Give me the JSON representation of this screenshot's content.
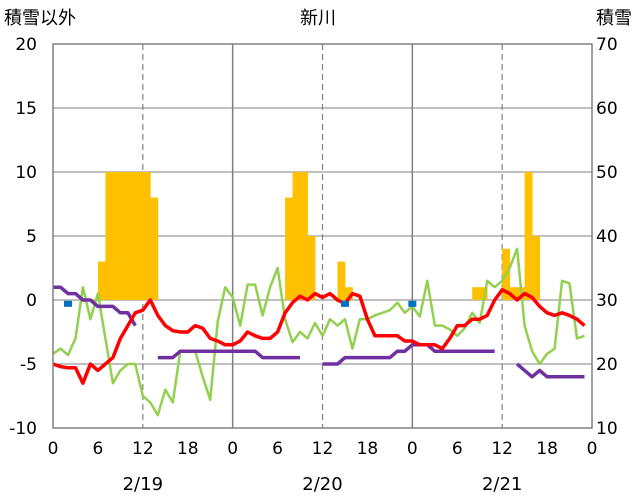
{
  "chart_data": {
    "type": "line",
    "title": "新川",
    "ylabel_left": "積雪以外",
    "ylabel_right": "積雪",
    "ylim_left": [
      -10,
      20
    ],
    "yticks_left": [
      20,
      15,
      10,
      5,
      0,
      -5,
      -10
    ],
    "ylim_right": [
      10,
      70
    ],
    "yticks_right": [
      70,
      60,
      50,
      40,
      30,
      20,
      10
    ],
    "xlim": [
      0,
      72
    ],
    "xticks": [
      0,
      6,
      12,
      18,
      24,
      30,
      36,
      42,
      48,
      54,
      60,
      66,
      72
    ],
    "xtick_labels": [
      "0",
      "6",
      "12",
      "18",
      "0",
      "6",
      "12",
      "18",
      "0",
      "6",
      "12",
      "18",
      "0"
    ],
    "day_dividers": [
      24,
      48
    ],
    "noon_lines": [
      12,
      36,
      60
    ],
    "date_labels": [
      {
        "x": 12,
        "label": "2/19"
      },
      {
        "x": 36,
        "label": "2/20"
      },
      {
        "x": 60,
        "label": "2/21"
      }
    ],
    "colors": {
      "temperature": "#ff0000",
      "green": "#92d050",
      "purple": "#7030a0",
      "precip": "#ffc000",
      "blue": "#0070c0",
      "grid": "#808080"
    },
    "series": [
      {
        "key": "precip",
        "kind": "bar",
        "axis": "left",
        "x": [
          6.5,
          7.5,
          8.5,
          9.5,
          10.5,
          11.5,
          12.5,
          13.5,
          31.5,
          32.5,
          33.5,
          34.5,
          35.5,
          38.5,
          39.5,
          56.5,
          57.5,
          58.5,
          60.5,
          61.5,
          62.5,
          63.5,
          64.5
        ],
        "y": [
          3,
          10,
          10,
          10,
          10,
          10,
          10,
          8,
          8,
          10,
          10,
          5,
          0,
          3,
          1,
          1,
          1,
          0,
          4,
          1,
          1,
          10,
          5
        ]
      },
      {
        "key": "temperature",
        "kind": "line",
        "axis": "left",
        "x": [
          0,
          1,
          2,
          3,
          4,
          5,
          6,
          7,
          8,
          9,
          10,
          11,
          12,
          13,
          14,
          15,
          16,
          17,
          18,
          19,
          20,
          21,
          22,
          23,
          24,
          25,
          26,
          27,
          28,
          29,
          30,
          31,
          32,
          33,
          34,
          35,
          36,
          37,
          38,
          39,
          40,
          41,
          42,
          43,
          44,
          45,
          46,
          47,
          48,
          49,
          50,
          51,
          52,
          53,
          54,
          55,
          56,
          57,
          58,
          59,
          60,
          61,
          62,
          63,
          64,
          65,
          66,
          67,
          68,
          69,
          70,
          71
        ],
        "y": [
          -5,
          -5.2,
          -5.3,
          -5.3,
          -6.5,
          -5,
          -5.5,
          -5,
          -4.5,
          -3,
          -2,
          -1,
          -0.8,
          0,
          -1.2,
          -2,
          -2.4,
          -2.5,
          -2.5,
          -2,
          -2.2,
          -3,
          -3.2,
          -3.5,
          -3.5,
          -3.2,
          -2.5,
          -2.8,
          -3,
          -3,
          -2.5,
          -1,
          -0.2,
          0.3,
          0,
          0.5,
          0.2,
          0.5,
          0,
          -0.3,
          0.5,
          0.3,
          -1.5,
          -2.8,
          -2.8,
          -2.8,
          -2.8,
          -3.2,
          -3.2,
          -3.5,
          -3.5,
          -3.5,
          -3.8,
          -3,
          -2,
          -2,
          -1.5,
          -1.5,
          -1.2,
          0,
          0.8,
          0.5,
          0,
          0.5,
          0.2,
          -0.5,
          -1,
          -1.2,
          -1,
          -1.2,
          -1.5,
          -2
        ]
      },
      {
        "key": "green",
        "kind": "line",
        "axis": "left",
        "x": [
          0,
          1,
          2,
          3,
          4,
          5,
          6,
          7,
          8,
          9,
          10,
          11,
          12,
          13,
          14,
          15,
          16,
          17,
          18,
          19,
          20,
          21,
          22,
          23,
          24,
          25,
          26,
          27,
          28,
          29,
          30,
          31,
          32,
          33,
          34,
          35,
          36,
          37,
          38,
          39,
          40,
          41,
          42,
          43,
          44,
          45,
          46,
          47,
          48,
          49,
          50,
          51,
          52,
          53,
          54,
          55,
          56,
          57,
          58,
          59,
          60,
          61,
          62,
          63,
          64,
          65,
          66,
          67,
          68,
          69,
          70,
          71
        ],
        "y": [
          -4.2,
          -3.8,
          -4.3,
          -3,
          1,
          -1.5,
          0.5,
          -3,
          -6.5,
          -5.5,
          -5,
          -5,
          -7.5,
          -8,
          -9,
          -7,
          -8,
          -4,
          -4,
          -4,
          -6,
          -7.8,
          -1.7,
          1,
          0.2,
          -2,
          1.2,
          1.2,
          -1.2,
          1,
          2.5,
          -1.5,
          -3.3,
          -2.5,
          -3,
          -1.8,
          -2.8,
          -1.5,
          -2,
          -1.5,
          -3.8,
          -1.5,
          -1.5,
          -1.2,
          -1,
          -0.8,
          -0.2,
          -1,
          -0.5,
          -1.3,
          1.5,
          -2,
          -2,
          -2.3,
          -2.8,
          -2.2,
          -1,
          -1.8,
          1.5,
          1,
          1.5,
          2.5,
          4,
          -2,
          -4,
          -5,
          -4.2,
          -3.8,
          1.5,
          1.3,
          -3,
          -2.8
        ]
      },
      {
        "key": "purple",
        "kind": "line",
        "axis": "left",
        "segments": [
          {
            "x": [
              0,
              1,
              2,
              3,
              4,
              5,
              6,
              7,
              8,
              9,
              10,
              11
            ],
            "y": [
              1,
              1,
              0.5,
              0.5,
              0,
              0,
              -0.5,
              -0.5,
              -0.5,
              -1,
              -1,
              -2
            ]
          },
          {
            "x": [
              14,
              15,
              16,
              17,
              18,
              19,
              20,
              21,
              22,
              23,
              24,
              25,
              26,
              27,
              28,
              29,
              30,
              31,
              32,
              33
            ],
            "y": [
              -4.5,
              -4.5,
              -4.5,
              -4,
              -4,
              -4,
              -4,
              -4,
              -4,
              -4,
              -4,
              -4,
              -4,
              -4,
              -4.5,
              -4.5,
              -4.5,
              -4.5,
              -4.5,
              -4.5
            ]
          },
          {
            "x": [
              36,
              37,
              38,
              39,
              40,
              41,
              42,
              43,
              44,
              45,
              46,
              47,
              48,
              49,
              50,
              51,
              52,
              53,
              54,
              55,
              56,
              57,
              58,
              59
            ],
            "y": [
              -5,
              -5,
              -5,
              -4.5,
              -4.5,
              -4.5,
              -4.5,
              -4.5,
              -4.5,
              -4.5,
              -4,
              -4,
              -3.5,
              -3.5,
              -3.5,
              -4,
              -4,
              -4,
              -4,
              -4,
              -4,
              -4,
              -4,
              -4
            ]
          },
          {
            "x": [
              62,
              63,
              64,
              65,
              66,
              67,
              68,
              69,
              70,
              71
            ],
            "y": [
              -5,
              -5.5,
              -6,
              -5.5,
              -6,
              -6,
              -6,
              -6,
              -6,
              -6
            ]
          }
        ]
      },
      {
        "key": "blue",
        "kind": "marker",
        "axis": "left",
        "x": [
          2,
          39,
          48
        ],
        "y": [
          -0.3,
          -0.3,
          -0.3
        ]
      }
    ]
  }
}
